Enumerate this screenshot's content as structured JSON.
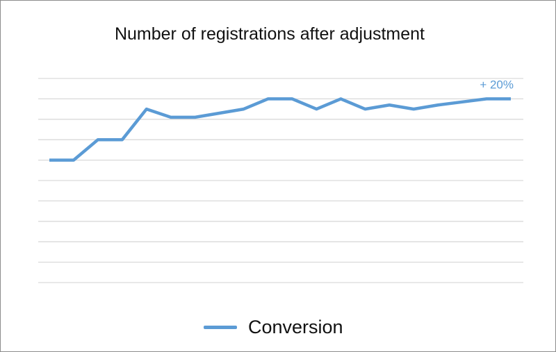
{
  "chart_data": {
    "type": "line",
    "title": "Number of registrations after adjustment",
    "xlabel": "",
    "ylabel": "",
    "x": [
      1,
      2,
      3,
      4,
      5,
      6,
      7,
      8,
      9,
      10,
      11,
      12,
      13,
      14,
      15,
      16,
      17,
      18,
      19,
      20
    ],
    "ylim": [
      0,
      10
    ],
    "grid": true,
    "gridlines": 11,
    "series": [
      {
        "name": "Conversion",
        "color": "#5b9bd5",
        "values": [
          6,
          6,
          7,
          7,
          8.5,
          8.1,
          8.1,
          8.3,
          8.5,
          9,
          9,
          8.5,
          9,
          8.5,
          8.7,
          8.5,
          8.7,
          8.85,
          9,
          9
        ]
      }
    ],
    "annotations": [
      {
        "text": "+ 20%",
        "x": 20,
        "y": 9
      }
    ],
    "legend": {
      "position": "bottom"
    }
  },
  "colors": {
    "series": "#5b9bd5",
    "grid": "#d9d9d9",
    "text": "#111111"
  }
}
